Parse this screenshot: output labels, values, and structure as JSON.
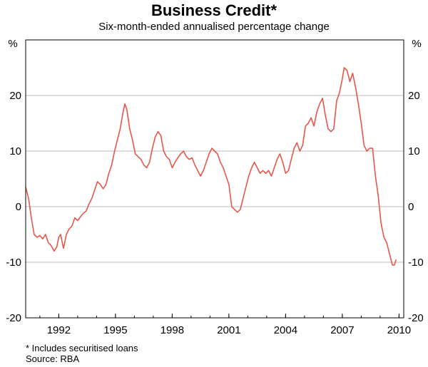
{
  "chart_data": {
    "type": "line",
    "title": "Business Credit*",
    "subtitle": "Six-month-ended annualised percentage change",
    "y_unit_left": "%",
    "y_unit_right": "%",
    "xlim": [
      1990.25,
      2010.25
    ],
    "ylim": [
      -20,
      30
    ],
    "x_ticks": [
      1992,
      1995,
      1998,
      2001,
      2004,
      2007,
      2010
    ],
    "x_tick_labels": [
      "1992",
      "1995",
      "1998",
      "2001",
      "2004",
      "2007",
      "2010"
    ],
    "y_ticks": [
      -20,
      -10,
      0,
      10,
      20
    ],
    "y_tick_labels": [
      "-20",
      "-10",
      "0",
      "10",
      "20"
    ],
    "grid": true,
    "series": [
      {
        "color": "#e8564a",
        "x": [
          1990.25,
          1990.4,
          1990.55,
          1990.7,
          1990.85,
          1991.0,
          1991.15,
          1991.3,
          1991.45,
          1991.6,
          1991.75,
          1991.9,
          1992.0,
          1992.1,
          1992.25,
          1992.4,
          1992.55,
          1992.7,
          1992.85,
          1993.0,
          1993.15,
          1993.3,
          1993.45,
          1993.6,
          1993.75,
          1993.9,
          1994.05,
          1994.2,
          1994.35,
          1994.5,
          1994.65,
          1994.8,
          1994.95,
          1995.1,
          1995.25,
          1995.4,
          1995.5,
          1995.6,
          1995.75,
          1995.9,
          1996.05,
          1996.2,
          1996.35,
          1996.5,
          1996.65,
          1996.8,
          1996.95,
          1997.1,
          1997.25,
          1997.4,
          1997.55,
          1997.7,
          1997.85,
          1998.0,
          1998.15,
          1998.3,
          1998.45,
          1998.6,
          1998.75,
          1998.9,
          1999.05,
          1999.2,
          1999.35,
          1999.5,
          1999.65,
          1999.8,
          1999.95,
          2000.1,
          2000.25,
          2000.4,
          2000.55,
          2000.7,
          2000.85,
          2001.0,
          2001.15,
          2001.3,
          2001.45,
          2001.6,
          2001.75,
          2001.9,
          2002.05,
          2002.2,
          2002.35,
          2002.5,
          2002.65,
          2002.8,
          2002.95,
          2003.1,
          2003.25,
          2003.4,
          2003.55,
          2003.7,
          2003.85,
          2004.0,
          2004.15,
          2004.3,
          2004.45,
          2004.6,
          2004.75,
          2004.9,
          2005.05,
          2005.2,
          2005.35,
          2005.5,
          2005.65,
          2005.8,
          2005.95,
          2006.1,
          2006.25,
          2006.4,
          2006.55,
          2006.7,
          2006.85,
          2007.0,
          2007.1,
          2007.25,
          2007.4,
          2007.55,
          2007.7,
          2007.85,
          2008.0,
          2008.15,
          2008.3,
          2008.45,
          2008.6,
          2008.75,
          2008.9,
          2009.05,
          2009.2,
          2009.35,
          2009.5,
          2009.65,
          2009.75,
          2009.85
        ],
        "y": [
          3.5,
          1.5,
          -2.0,
          -5.0,
          -5.5,
          -5.2,
          -5.8,
          -5.0,
          -6.5,
          -7.0,
          -8.0,
          -7.2,
          -5.5,
          -5.0,
          -7.5,
          -5.0,
          -4.0,
          -3.5,
          -2.0,
          -2.5,
          -1.8,
          -1.2,
          -0.8,
          0.5,
          1.5,
          3.0,
          4.5,
          4.0,
          3.2,
          4.0,
          6.0,
          7.5,
          10.0,
          12.0,
          14.0,
          17.0,
          18.5,
          17.5,
          14.0,
          12.0,
          9.5,
          9.0,
          8.5,
          7.5,
          7.0,
          8.0,
          10.5,
          12.5,
          13.5,
          12.8,
          10.0,
          9.0,
          8.5,
          7.0,
          8.0,
          8.8,
          9.5,
          10.0,
          9.0,
          8.5,
          8.8,
          7.5,
          6.5,
          5.5,
          6.5,
          8.0,
          9.5,
          10.5,
          10.0,
          9.5,
          8.0,
          7.0,
          5.5,
          4.0,
          0.0,
          -0.5,
          -1.0,
          -0.5,
          1.5,
          3.5,
          5.5,
          7.0,
          8.0,
          7.0,
          6.0,
          6.5,
          6.0,
          6.5,
          5.5,
          7.0,
          8.5,
          9.5,
          8.0,
          6.0,
          6.5,
          8.5,
          10.5,
          11.5,
          10.0,
          11.0,
          14.5,
          15.0,
          16.0,
          14.5,
          17.0,
          18.5,
          19.5,
          16.5,
          14.0,
          13.5,
          14.0,
          19.0,
          20.5,
          23.0,
          25.0,
          24.5,
          22.5,
          24.0,
          21.5,
          18.5,
          15.0,
          11.0,
          10.0,
          10.5,
          10.5,
          5.5,
          2.0,
          -3.0,
          -5.5,
          -6.5,
          -8.5,
          -10.5,
          -10.5,
          -9.5
        ]
      }
    ],
    "footnotes": [
      "*   Includes securitised loans",
      "Source: RBA"
    ]
  }
}
